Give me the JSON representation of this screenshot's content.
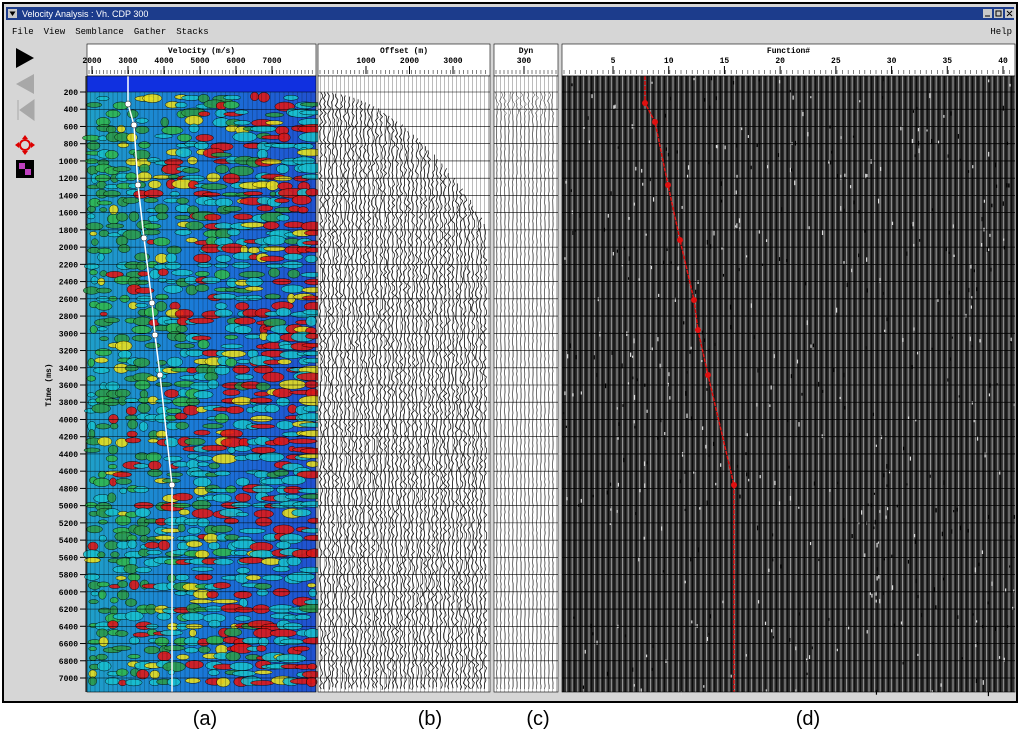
{
  "window": {
    "title": "Velocity Analysis :  Vh.  CDP 300",
    "help": "Help"
  },
  "menu": [
    "File",
    "View",
    "Semblance",
    "Gather",
    "Stacks"
  ],
  "time_axis": {
    "label": "Time (ms)",
    "ticks": [
      200,
      400,
      600,
      800,
      1000,
      1200,
      1400,
      1600,
      1800,
      2000,
      2200,
      2400,
      2600,
      2800,
      3000,
      3200,
      3400,
      3600,
      3800,
      4000,
      4200,
      4400,
      4600,
      4800,
      5000,
      5200,
      5400,
      5600,
      5800,
      6000,
      6200,
      6400,
      6600,
      6800,
      7000
    ]
  },
  "panels": [
    {
      "title": "Velocity (m/s)",
      "ticks": [
        2000,
        3000,
        4000,
        5000,
        6000,
        7000
      ],
      "caption": "(a)"
    },
    {
      "title": "Offset (m)",
      "ticks": [
        1000,
        2000,
        3000
      ],
      "caption": "(b)"
    },
    {
      "title": "Dyn",
      "ticks": [
        300
      ],
      "caption": "(c)"
    },
    {
      "title": "Function#",
      "ticks": [
        5,
        10,
        15,
        20,
        25,
        30,
        35,
        40
      ],
      "caption": "(d)"
    }
  ]
}
